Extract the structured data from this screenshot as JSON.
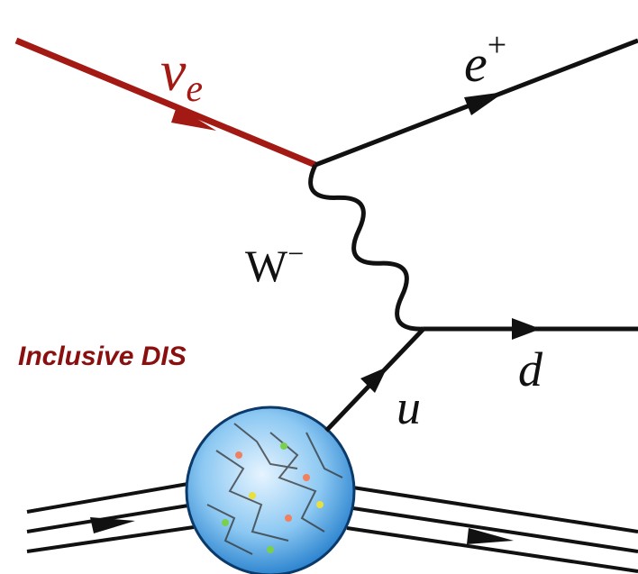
{
  "nodes": [
    {
      "label": "ν",
      "sub": "e"
    },
    {
      "label": "e",
      "sup": "+"
    },
    {
      "label": "W",
      "sup": "−"
    },
    {
      "label": "d"
    },
    {
      "label": "u"
    }
  ],
  "caption": "Inclusive DIS"
}
